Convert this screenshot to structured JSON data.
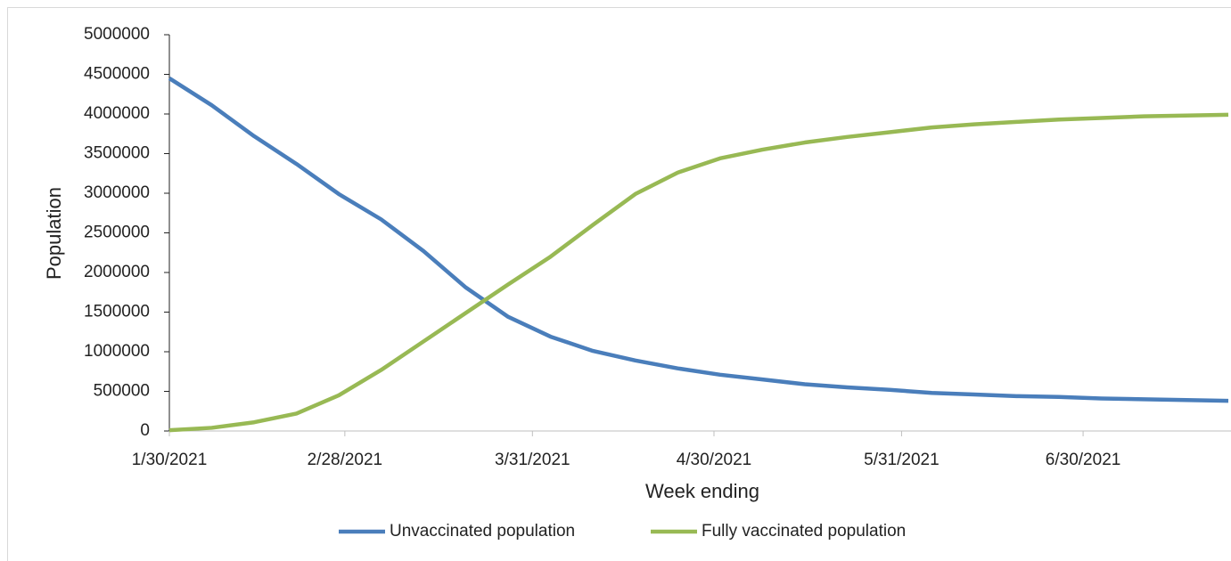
{
  "chart_data": {
    "type": "line",
    "x": [
      "1/30/2021",
      "2/6/2021",
      "2/13/2021",
      "2/20/2021",
      "2/27/2021",
      "3/6/2021",
      "3/13/2021",
      "3/20/2021",
      "3/27/2021",
      "4/3/2021",
      "4/10/2021",
      "4/17/2021",
      "4/24/2021",
      "5/1/2021",
      "5/8/2021",
      "5/15/2021",
      "5/22/2021",
      "5/29/2021",
      "6/5/2021",
      "6/12/2021",
      "6/19/2021",
      "6/26/2021",
      "7/3/2021",
      "7/10/2021",
      "7/17/2021",
      "7/24/2021"
    ],
    "series": [
      {
        "name": "Unvaccinated population",
        "color": "#4a7ebb",
        "values": [
          4450000,
          4110000,
          3720000,
          3370000,
          2990000,
          2670000,
          2270000,
          1810000,
          1440000,
          1190000,
          1010000,
          890000,
          790000,
          710000,
          650000,
          590000,
          550000,
          520000,
          480000,
          460000,
          440000,
          430000,
          410000,
          400000,
          390000,
          380000
        ]
      },
      {
        "name": "Fully vaccinated population",
        "color": "#98b954",
        "values": [
          10000,
          40000,
          110000,
          220000,
          450000,
          770000,
          1130000,
          1490000,
          1850000,
          2200000,
          2600000,
          2990000,
          3260000,
          3440000,
          3550000,
          3640000,
          3710000,
          3770000,
          3830000,
          3870000,
          3900000,
          3930000,
          3950000,
          3970000,
          3980000,
          3990000
        ]
      }
    ],
    "xlim": [
      "1/30/2021",
      "7/24/2021"
    ],
    "xticks": [
      "1/30/2021",
      "2/28/2021",
      "3/31/2021",
      "4/30/2021",
      "5/31/2021",
      "6/30/2021"
    ],
    "ylim": [
      0,
      5000000
    ],
    "yticks": [
      0,
      500000,
      1000000,
      1500000,
      2000000,
      2500000,
      3000000,
      3500000,
      4000000,
      4500000,
      5000000
    ],
    "xlabel": "Week ending",
    "ylabel": "Population",
    "legend": "bottom"
  }
}
